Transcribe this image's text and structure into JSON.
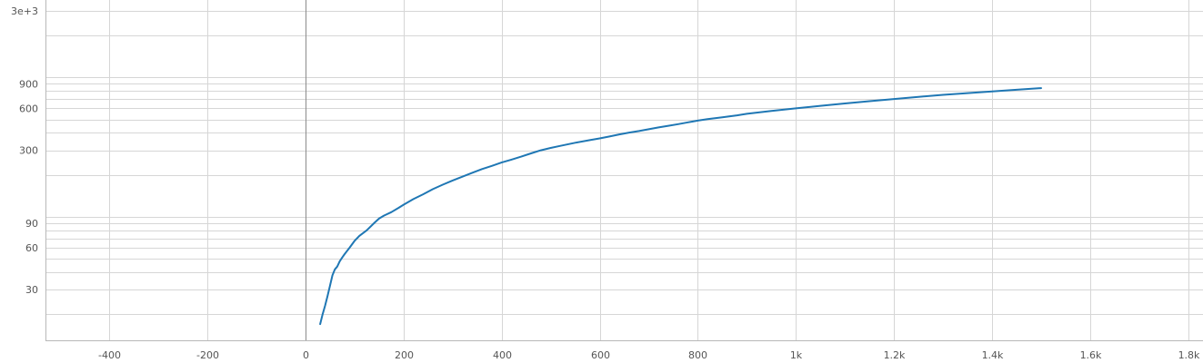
{
  "chart_data": {
    "type": "line",
    "title": "",
    "xlabel": "",
    "ylabel": "",
    "grid": true,
    "legend": "none",
    "xlim": [
      -530,
      1830
    ],
    "ylim": [
      13,
      3000
    ],
    "yscale": "log",
    "x_ticks": [
      {
        "value": -400,
        "label": "-400"
      },
      {
        "value": -200,
        "label": "-200"
      },
      {
        "value": 0,
        "label": "0"
      },
      {
        "value": 200,
        "label": "200"
      },
      {
        "value": 400,
        "label": "400"
      },
      {
        "value": 600,
        "label": "600"
      },
      {
        "value": 800,
        "label": "800"
      },
      {
        "value": 1000,
        "label": "1k"
      },
      {
        "value": 1200,
        "label": "1.2k"
      },
      {
        "value": 1400,
        "label": "1.4k"
      },
      {
        "value": 1600,
        "label": "1.6k"
      },
      {
        "value": 1800,
        "label": "1.8k"
      }
    ],
    "y_ticks": [
      {
        "value": 30,
        "label": "30"
      },
      {
        "value": 60,
        "label": "60"
      },
      {
        "value": 90,
        "label": "90"
      },
      {
        "value": 300,
        "label": "300"
      },
      {
        "value": 600,
        "label": "600"
      },
      {
        "value": 900,
        "label": "900"
      },
      {
        "value": 3000,
        "label": "3e+3"
      }
    ],
    "y_gridlines": [
      20,
      30,
      40,
      50,
      60,
      70,
      80,
      90,
      100,
      200,
      300,
      400,
      500,
      600,
      700,
      800,
      900,
      1000,
      2000,
      3000
    ],
    "series": [
      {
        "color": "#1f77b4",
        "x": [
          30,
          35,
          40,
          45,
          50,
          55,
          60,
          65,
          70,
          75,
          80,
          90,
          100,
          110,
          125,
          140,
          150,
          160,
          175,
          190,
          200,
          220,
          240,
          260,
          280,
          300,
          320,
          340,
          360,
          380,
          400,
          420,
          440,
          460,
          480,
          500,
          520,
          550,
          580,
          600,
          620,
          640,
          660,
          680,
          700,
          720,
          740,
          760,
          780,
          800,
          820,
          850,
          880,
          900,
          950,
          1000,
          1050,
          1100,
          1150,
          1200,
          1250,
          1300,
          1350,
          1400,
          1450,
          1500
        ],
        "y": [
          17,
          20,
          23,
          27,
          32,
          38,
          42,
          44,
          48,
          51,
          54,
          60,
          67,
          73,
          80,
          90,
          97,
          102,
          108,
          116,
          122,
          134,
          145,
          158,
          170,
          182,
          194,
          207,
          220,
          232,
          245,
          257,
          270,
          285,
          300,
          312,
          323,
          340,
          355,
          365,
          377,
          390,
          402,
          412,
          425,
          438,
          450,
          462,
          476,
          490,
          502,
          518,
          534,
          548,
          575,
          600,
          625,
          650,
          675,
          700,
          725,
          750,
          772,
          793,
          815,
          838
        ]
      }
    ]
  }
}
